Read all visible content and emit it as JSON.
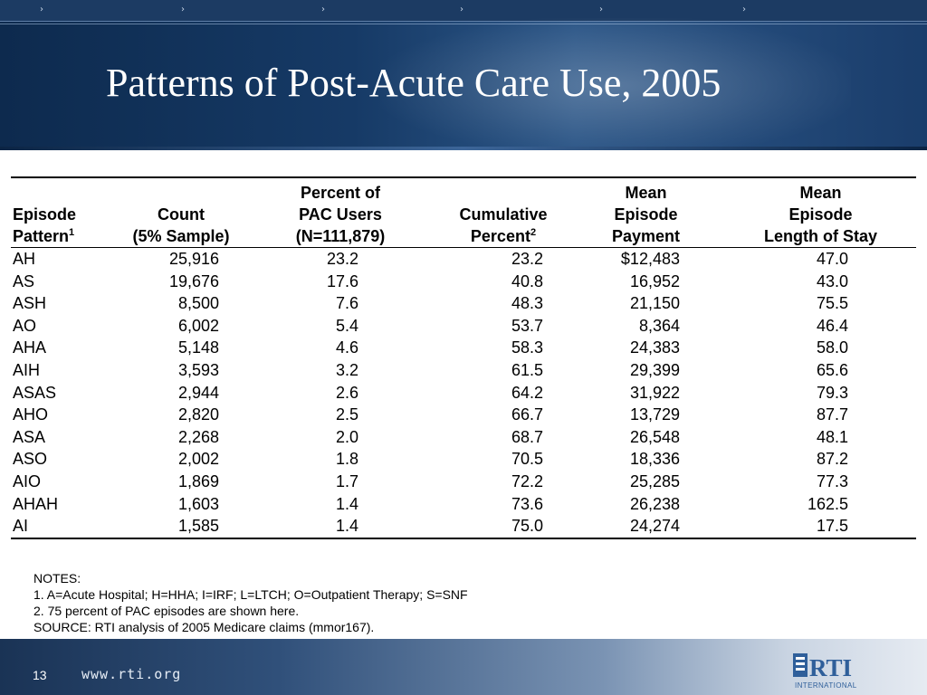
{
  "slide": {
    "title": "Patterns of Post-Acute Care Use, 2005",
    "page_number": "13",
    "footer_url": "www.rti.org",
    "logo_text": "RTI",
    "logo_subtext": "INTERNATIONAL"
  },
  "table": {
    "headers": {
      "episode_line1": "Episode",
      "episode_line2": "Pattern",
      "episode_sup": "1",
      "count_line1": "Count",
      "count_line2": "(5% Sample)",
      "pct_line1": "Percent of",
      "pct_line2": "PAC Users",
      "pct_line3": "(N=111,879)",
      "cum_line1": "Cumulative",
      "cum_line2": "Percent",
      "cum_sup": "2",
      "pay_line1": "Mean",
      "pay_line2": "Episode",
      "pay_line3": "Payment",
      "los_line1": "Mean",
      "los_line2": "Episode",
      "los_line3": "Length of Stay"
    },
    "rows": [
      {
        "pattern": "AH",
        "count": "25,916",
        "percent": "23.2",
        "cumulative": "23.2",
        "payment": "$12,483",
        "los": "47.0"
      },
      {
        "pattern": "AS",
        "count": "19,676",
        "percent": "17.6",
        "cumulative": "40.8",
        "payment": "16,952",
        "los": "43.0"
      },
      {
        "pattern": "ASH",
        "count": "8,500",
        "percent": "7.6",
        "cumulative": "48.3",
        "payment": "21,150",
        "los": "75.5"
      },
      {
        "pattern": "AO",
        "count": "6,002",
        "percent": "5.4",
        "cumulative": "53.7",
        "payment": "8,364",
        "los": "46.4"
      },
      {
        "pattern": "AHA",
        "count": "5,148",
        "percent": "4.6",
        "cumulative": "58.3",
        "payment": "24,383",
        "los": "58.0"
      },
      {
        "pattern": "AIH",
        "count": "3,593",
        "percent": "3.2",
        "cumulative": "61.5",
        "payment": "29,399",
        "los": "65.6"
      },
      {
        "pattern": "ASAS",
        "count": "2,944",
        "percent": "2.6",
        "cumulative": "64.2",
        "payment": "31,922",
        "los": "79.3"
      },
      {
        "pattern": "AHO",
        "count": "2,820",
        "percent": "2.5",
        "cumulative": "66.7",
        "payment": "13,729",
        "los": "87.7"
      },
      {
        "pattern": "ASA",
        "count": "2,268",
        "percent": "2.0",
        "cumulative": "68.7",
        "payment": "26,548",
        "los": "48.1"
      },
      {
        "pattern": "ASO",
        "count": "2,002",
        "percent": "1.8",
        "cumulative": "70.5",
        "payment": "18,336",
        "los": "87.2"
      },
      {
        "pattern": "AIO",
        "count": "1,869",
        "percent": "1.7",
        "cumulative": "72.2",
        "payment": "25,285",
        "los": "77.3"
      },
      {
        "pattern": "AHAH",
        "count": "1,603",
        "percent": "1.4",
        "cumulative": "73.6",
        "payment": "26,238",
        "los": "162.5"
      },
      {
        "pattern": "AI",
        "count": "1,585",
        "percent": "1.4",
        "cumulative": "75.0",
        "payment": "24,274",
        "los": "17.5"
      }
    ]
  },
  "notes": [
    "NOTES:",
    "1. A=Acute Hospital; H=HHA; I=IRF; L=LTCH; O=Outpatient Therapy; S=SNF",
    "2. 75 percent of PAC episodes are shown here.",
    "SOURCE: RTI analysis of 2005 Medicare claims (mmor167)."
  ],
  "colors": {
    "header_dark": "#0d2a4e",
    "header_mid": "#2c5687",
    "logo_blue": "#2f5f9a"
  }
}
